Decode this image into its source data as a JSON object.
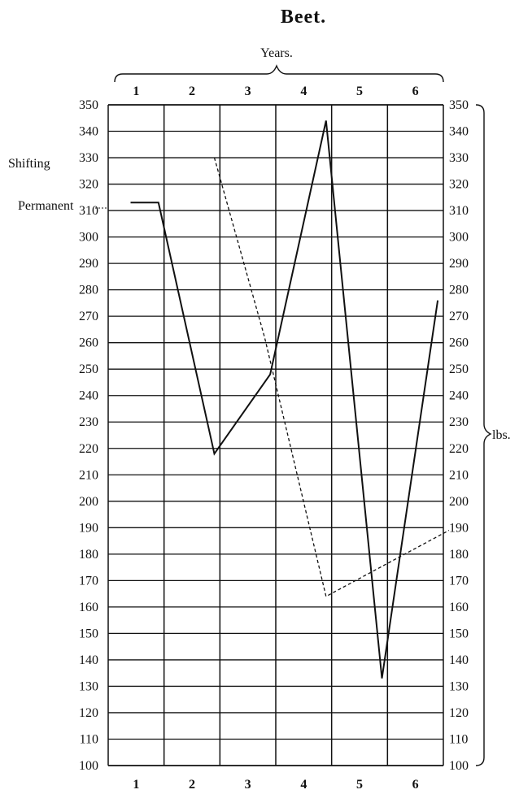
{
  "chart_data": {
    "type": "line",
    "title": "Beet.",
    "xlabel": "Years.",
    "ylabel": "lbs.",
    "categories": [
      "1",
      "2",
      "3",
      "4",
      "5",
      "6"
    ],
    "yticks": [
      350,
      340,
      330,
      320,
      310,
      300,
      290,
      280,
      270,
      260,
      250,
      240,
      230,
      220,
      210,
      200,
      190,
      180,
      170,
      160,
      150,
      140,
      130,
      120,
      110,
      100
    ],
    "ylim": [
      100,
      350
    ],
    "grid": true,
    "series": [
      {
        "name": "Permanent",
        "style": "solid",
        "color": "#111111",
        "points": [
          [
            0.9,
            313
          ],
          [
            1.4,
            313
          ],
          [
            2.4,
            218
          ],
          [
            3.4,
            248
          ],
          [
            4.4,
            344
          ],
          [
            5.4,
            133
          ],
          [
            6.4,
            276
          ]
        ]
      },
      {
        "name": "Shifting",
        "style": "dashed",
        "color": "#111111",
        "points": [
          [
            2.4,
            330
          ],
          [
            3.3,
            262
          ],
          [
            4.4,
            164
          ],
          [
            6.6,
            189
          ]
        ]
      }
    ]
  }
}
